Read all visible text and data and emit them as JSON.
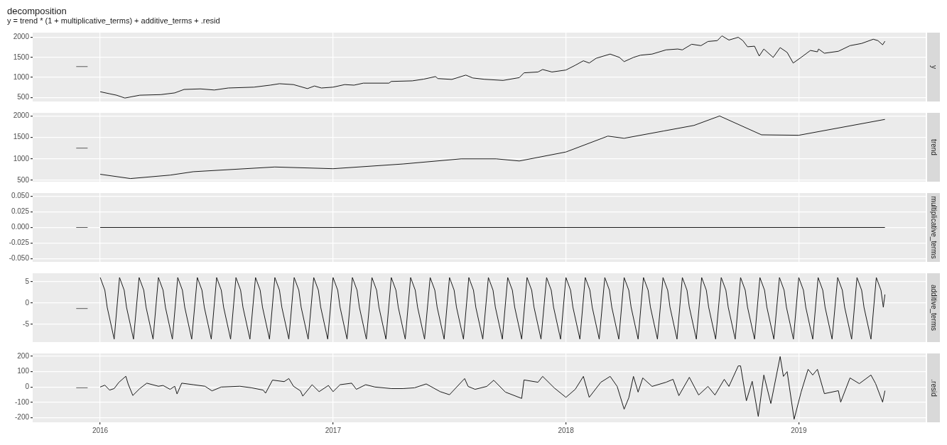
{
  "chart_data": [
    {
      "type": "line",
      "title": "decomposition",
      "subtitle": "y = trend * (1 + multiplicative_terms) + additive_terms + .resid",
      "xlim": [
        2015.71,
        2019.545
      ],
      "xticks": [
        2016,
        2017,
        2018,
        2019
      ],
      "ylim": [
        400,
        2115
      ],
      "yticks": [
        500,
        1000,
        1500,
        2000
      ],
      "grid": true,
      "tick_labels": "y",
      "series": [
        {
          "name": "y",
          "color": "#1a1a1a",
          "x": [
            2016.0,
            2016.04,
            2016.07,
            2016.106,
            2016.17,
            2016.26,
            2016.32,
            2016.36,
            2016.43,
            2016.49,
            2016.55,
            2016.66,
            2016.73,
            2016.77,
            2016.83,
            2016.89,
            2016.92,
            2016.95,
            2017.0,
            2017.05,
            2017.09,
            2017.13,
            2017.24,
            2017.25,
            2017.34,
            2017.39,
            2017.44,
            2017.45,
            2017.51,
            2017.57,
            2017.6,
            2017.65,
            2017.73,
            2017.8,
            2017.82,
            2017.88,
            2017.9,
            2017.94,
            2018.0,
            2018.04,
            2018.075,
            2018.1,
            2018.13,
            2018.19,
            2018.23,
            2018.25,
            2018.29,
            2018.32,
            2018.37,
            2018.43,
            2018.48,
            2018.5,
            2018.54,
            2018.58,
            2018.61,
            2018.65,
            2018.67,
            2018.7,
            2018.74,
            2018.76,
            2018.78,
            2018.81,
            2018.83,
            2018.85,
            2018.89,
            2018.92,
            2018.95,
            2018.976,
            2019.01,
            2019.05,
            2019.08,
            2019.085,
            2019.11,
            2019.17,
            2019.22,
            2019.27,
            2019.32,
            2019.34,
            2019.36,
            2019.37
          ],
          "values": [
            643,
            593,
            557,
            486,
            557,
            571,
            614,
            700,
            714,
            686,
            736,
            757,
            807,
            843,
            821,
            721,
            786,
            736,
            757,
            821,
            807,
            857,
            857,
            900,
            914,
            957,
            1021,
            971,
            950,
            1057,
            986,
            953,
            925,
            995,
            1114,
            1135,
            1197,
            1135,
            1184,
            1302,
            1414,
            1358,
            1477,
            1581,
            1498,
            1393,
            1498,
            1553,
            1581,
            1686,
            1707,
            1686,
            1826,
            1791,
            1895,
            1916,
            2035,
            1930,
            2000,
            1916,
            1763,
            1777,
            1532,
            1707,
            1498,
            1742,
            1623,
            1358,
            1498,
            1672,
            1637,
            1707,
            1602,
            1651,
            1791,
            1846,
            1951,
            1916,
            1812,
            1902
          ]
        },
        {
          "color": "#595959",
          "x": [
            2015.897,
            2015.946
          ],
          "values": [
            1270,
            1270
          ]
        }
      ]
    },
    {
      "type": "line",
      "xlim": [
        2015.71,
        2019.545
      ],
      "xticks": [
        2016,
        2017,
        2018,
        2019
      ],
      "ylim": [
        467,
        2073
      ],
      "yticks": [
        500,
        1000,
        1500,
        2000
      ],
      "grid": true,
      "tick_labels": "y",
      "series": [
        {
          "name": "trend",
          "color": "#1a1a1a",
          "x": [
            2016.0,
            2016.13,
            2016.3,
            2016.4,
            2016.75,
            2017.0,
            2017.3,
            2017.55,
            2017.7,
            2017.8,
            2018.0,
            2018.18,
            2018.25,
            2018.42,
            2018.55,
            2018.66,
            2018.84,
            2019.0,
            2019.37
          ],
          "values": [
            640,
            540,
            620,
            700,
            810,
            770,
            880,
            1000,
            1000,
            950,
            1160,
            1530,
            1480,
            1650,
            1780,
            2000,
            1560,
            1550,
            1920
          ]
        },
        {
          "color": "#595959",
          "x": [
            2015.897,
            2015.946
          ],
          "values": [
            1250,
            1250
          ]
        }
      ]
    },
    {
      "type": "line",
      "xlim": [
        2015.71,
        2019.545
      ],
      "xticks": [
        2016,
        2017,
        2018,
        2019
      ],
      "ylim": [
        -0.055,
        0.055
      ],
      "yticks": [
        {
          "value": -0.05,
          "label": "-0.050"
        },
        {
          "value": -0.025,
          "label": "-0.025"
        },
        {
          "value": 0,
          "label": "0.000"
        },
        {
          "value": 0.025,
          "label": "0.025"
        },
        {
          "value": 0.05,
          "label": "0.050"
        }
      ],
      "grid": true,
      "tick_labels": "y",
      "series": [
        {
          "name": "multiplicative_terms",
          "color": "#1a1a1a",
          "x": [
            2016.0,
            2019.37
          ],
          "values": [
            0,
            0
          ]
        },
        {
          "color": "#595959",
          "x": [
            2015.897,
            2015.946
          ],
          "values": [
            0,
            0
          ]
        }
      ]
    },
    {
      "type": "line",
      "xlim": [
        2015.71,
        2019.545
      ],
      "xticks": [
        2016,
        2017,
        2018,
        2019
      ],
      "ylim": [
        -9.2,
        7.0
      ],
      "yticks": [
        -5,
        0,
        5
      ],
      "grid": true,
      "tick_labels": "y",
      "series": [
        {
          "name": "additive_terms",
          "color": "#1a1a1a",
          "x": [
            2016,
            2016.02,
            2016.03,
            2016.06,
            2016.083,
            2016.103,
            2016.113,
            2016.143,
            2016.167,
            2016.187,
            2016.197,
            2016.227,
            2016.25,
            2016.27,
            2016.28,
            2016.31,
            2016.333,
            2016.353,
            2016.363,
            2016.393,
            2016.417,
            2016.437,
            2016.447,
            2016.477,
            2016.5,
            2016.52,
            2016.53,
            2016.56,
            2016.583,
            2016.603,
            2016.613,
            2016.643,
            2016.667,
            2016.687,
            2016.697,
            2016.727,
            2016.75,
            2016.77,
            2016.78,
            2016.81,
            2016.833,
            2016.853,
            2016.863,
            2016.893,
            2016.917,
            2016.937,
            2016.947,
            2016.977,
            2017,
            2017.02,
            2017.03,
            2017.06,
            2017.083,
            2017.103,
            2017.113,
            2017.143,
            2017.167,
            2017.187,
            2017.197,
            2017.227,
            2017.25,
            2017.27,
            2017.28,
            2017.31,
            2017.333,
            2017.353,
            2017.363,
            2017.393,
            2017.417,
            2017.437,
            2017.447,
            2017.477,
            2017.5,
            2017.52,
            2017.53,
            2017.56,
            2017.583,
            2017.603,
            2017.613,
            2017.643,
            2017.667,
            2017.687,
            2017.697,
            2017.727,
            2017.75,
            2017.77,
            2017.78,
            2017.81,
            2017.833,
            2017.853,
            2017.863,
            2017.893,
            2017.917,
            2017.937,
            2017.947,
            2017.977,
            2018,
            2018.02,
            2018.03,
            2018.06,
            2018.083,
            2018.103,
            2018.113,
            2018.143,
            2018.167,
            2018.187,
            2018.197,
            2018.227,
            2018.25,
            2018.27,
            2018.28,
            2018.31,
            2018.333,
            2018.353,
            2018.363,
            2018.393,
            2018.417,
            2018.437,
            2018.447,
            2018.477,
            2018.5,
            2018.52,
            2018.53,
            2018.56,
            2018.583,
            2018.603,
            2018.613,
            2018.643,
            2018.667,
            2018.687,
            2018.697,
            2018.727,
            2018.75,
            2018.77,
            2018.78,
            2018.81,
            2018.833,
            2018.853,
            2018.863,
            2018.893,
            2018.917,
            2018.937,
            2018.947,
            2018.977,
            2019,
            2019.02,
            2019.03,
            2019.06,
            2019.083,
            2019.103,
            2019.113,
            2019.143,
            2019.167,
            2019.187,
            2019.197,
            2019.227,
            2019.25,
            2019.27,
            2019.28,
            2019.31,
            2019.333,
            2019.353,
            2019.363,
            2019.37
          ],
          "values": [
            6,
            3,
            -1,
            -8.5,
            6,
            3,
            -1,
            -8.5,
            6,
            3,
            -1,
            -8.5,
            6,
            3,
            -1,
            -8.5,
            6,
            3,
            -1,
            -8.5,
            6,
            3,
            -1,
            -8.5,
            6,
            3,
            -1,
            -8.5,
            6,
            3,
            -1,
            -8.5,
            6,
            3,
            -1,
            -8.5,
            6,
            3,
            -1,
            -8.5,
            6,
            3,
            -1,
            -8.5,
            6,
            3,
            -1,
            -8.5,
            6,
            3,
            -1,
            -8.5,
            6,
            3,
            -1,
            -8.5,
            6,
            3,
            -1,
            -8.5,
            6,
            3,
            -1,
            -8.5,
            6,
            3,
            -1,
            -8.5,
            6,
            3,
            -1,
            -8.5,
            6,
            3,
            -1,
            -8.5,
            6,
            3,
            -1,
            -8.5,
            6,
            3,
            -1,
            -8.5,
            6,
            3,
            -1,
            -8.5,
            6,
            3,
            -1,
            -8.5,
            6,
            3,
            -1,
            -8.5,
            6,
            3,
            -1,
            -8.5,
            6,
            3,
            -1,
            -8.5,
            6,
            3,
            -1,
            -8.5,
            6,
            3,
            -1,
            -8.5,
            6,
            3,
            -1,
            -8.5,
            6,
            3,
            -1,
            -8.5,
            6,
            3,
            -1,
            -8.5,
            6,
            3,
            -1,
            -8.5,
            6,
            3,
            -1,
            -8.5,
            6,
            3,
            -1,
            -8.5,
            6,
            3,
            -1,
            -8.5,
            6,
            3,
            -1,
            -8.5,
            6,
            3,
            -1,
            -8.5,
            6,
            3,
            -1,
            -8.5,
            6,
            3,
            -1,
            -8.5,
            6,
            3,
            -1,
            -8.5,
            6,
            3,
            -1,
            2
          ]
        },
        {
          "color": "#595959",
          "x": [
            2015.897,
            2015.946
          ],
          "values": [
            -1.3,
            -1.3
          ]
        }
      ]
    },
    {
      "type": "line",
      "xlim": [
        2015.71,
        2019.545
      ],
      "xticks": [
        2016,
        2017,
        2018,
        2019
      ],
      "ylim": [
        -229,
        218
      ],
      "yticks": [
        -200,
        -100,
        0,
        100,
        200
      ],
      "grid": true,
      "series": [
        {
          "name": ".resid",
          "color": "#1a1a1a",
          "x": [
            2016.0,
            2016.02,
            2016.04,
            2016.06,
            2016.08,
            2016.11,
            2016.12,
            2016.14,
            2016.17,
            2016.2,
            2016.25,
            2016.27,
            2016.3,
            2016.32,
            2016.33,
            2016.35,
            2016.4,
            2016.45,
            2016.48,
            2016.52,
            2016.6,
            2016.65,
            2016.7,
            2016.71,
            2016.74,
            2016.79,
            2016.81,
            2016.83,
            2016.86,
            2016.87,
            2016.91,
            2016.94,
            2016.98,
            2017.0,
            2017.03,
            2017.08,
            2017.1,
            2017.14,
            2017.18,
            2017.25,
            2017.3,
            2017.35,
            2017.4,
            2017.46,
            2017.5,
            2017.565,
            2017.58,
            2017.61,
            2017.66,
            2017.69,
            2017.74,
            2017.81,
            2017.82,
            2017.88,
            2017.9,
            2017.95,
            2018.0,
            2018.04,
            2018.075,
            2018.1,
            2018.15,
            2018.19,
            2018.22,
            2018.25,
            2018.27,
            2018.29,
            2018.31,
            2018.33,
            2018.37,
            2018.43,
            2018.46,
            2018.485,
            2018.53,
            2018.57,
            2018.61,
            2018.64,
            2018.68,
            2018.7,
            2018.74,
            2018.75,
            2018.775,
            2018.8,
            2018.826,
            2018.85,
            2018.88,
            2018.92,
            2018.934,
            2018.95,
            2018.98,
            2019.01,
            2019.04,
            2019.06,
            2019.08,
            2019.11,
            2019.17,
            2019.18,
            2019.22,
            2019.26,
            2019.31,
            2019.33,
            2019.36,
            2019.37
          ],
          "values": [
            0,
            12,
            -20,
            -10,
            30,
            70,
            20,
            -55,
            -10,
            25,
            5,
            10,
            -15,
            5,
            -45,
            25,
            15,
            5,
            -25,
            0,
            5,
            -5,
            -20,
            -40,
            45,
            35,
            55,
            5,
            -25,
            -59,
            15,
            -30,
            10,
            -30,
            15,
            25,
            -15,
            15,
            0,
            -10,
            -10,
            -5,
            20,
            -30,
            -50,
            55,
            4,
            -15,
            4,
            44,
            -33,
            -74,
            46,
            31,
            69,
            -6,
            -67,
            -15,
            69,
            -67,
            31,
            69,
            4,
            -144,
            -70,
            69,
            -33,
            59,
            4,
            31,
            50,
            -56,
            63,
            -52,
            4,
            -52,
            50,
            4,
            137,
            137,
            -89,
            37,
            -191,
            78,
            -107,
            198,
            69,
            100,
            -209,
            -33,
            115,
            78,
            115,
            -43,
            -24,
            -98,
            59,
            22,
            78,
            22,
            -98,
            -24
          ]
        },
        {
          "color": "#595959",
          "x": [
            2015.897,
            2015.946
          ],
          "values": [
            -5,
            -5
          ]
        }
      ]
    }
  ]
}
